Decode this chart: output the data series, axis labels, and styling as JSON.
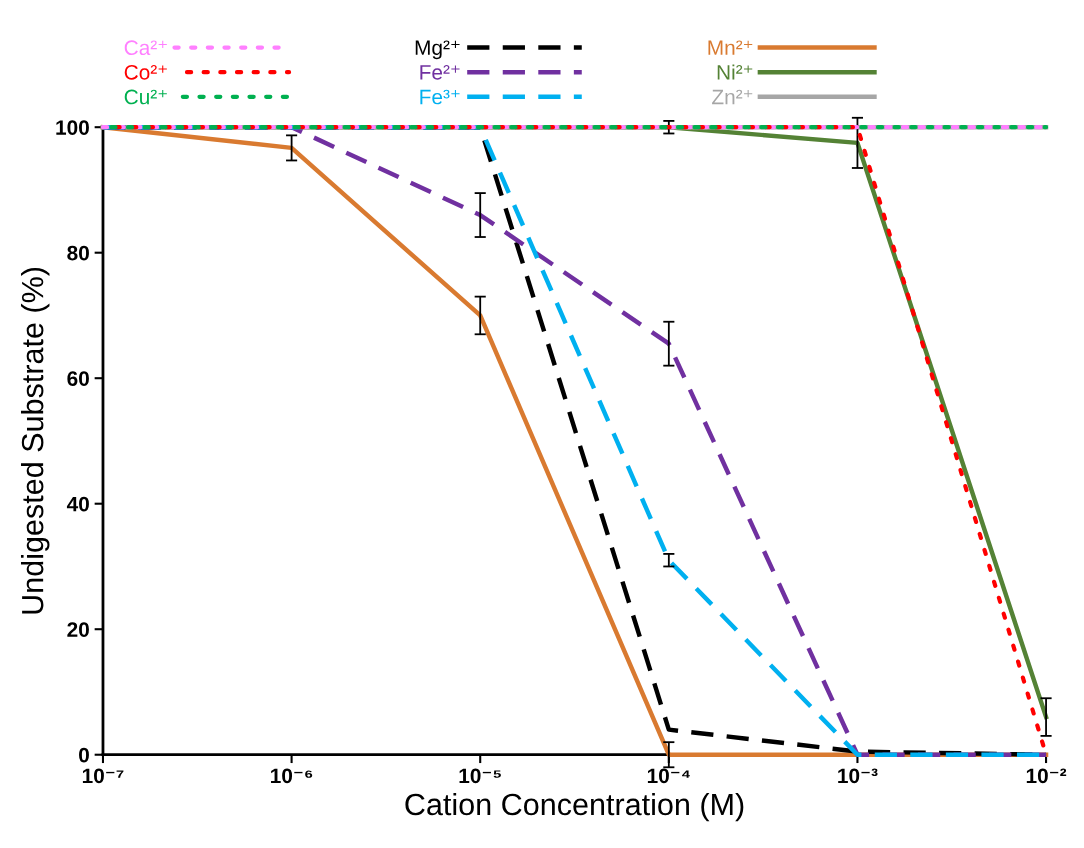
{
  "chart_data": {
    "type": "line",
    "xlabel": "Cation Concentration (M)",
    "ylabel": "Undigested Substrate (%)",
    "log": "x",
    "x": [
      1e-07,
      1e-06,
      1e-05,
      0.0001,
      0.001,
      0.01
    ],
    "xlim": [
      1e-07,
      0.01
    ],
    "xticks": [
      {
        "value": 1e-07,
        "label": "10⁻⁷"
      },
      {
        "value": 1e-06,
        "label": "10⁻⁶"
      },
      {
        "value": 1e-05,
        "label": "10⁻⁵"
      },
      {
        "value": 0.0001,
        "label": "10⁻⁴"
      },
      {
        "value": 0.001,
        "label": "10⁻³"
      },
      {
        "value": 0.01,
        "label": "10⁻²"
      }
    ],
    "ylim": [
      0,
      100
    ],
    "yticks": [
      0,
      20,
      40,
      60,
      80,
      100
    ],
    "grid": false,
    "legend": "top",
    "marker": "none",
    "series": [
      {
        "name": "Ca²⁺",
        "color": "#ff80ff",
        "line_style": "dotted",
        "values": [
          100,
          100,
          100,
          100,
          100,
          100
        ]
      },
      {
        "name": "Co²⁺",
        "color": "#ff0000",
        "line_style": "dotted",
        "values": [
          100,
          100,
          100,
          100,
          100,
          0
        ]
      },
      {
        "name": "Cu²⁺",
        "color": "#00b050",
        "line_style": "dotted",
        "values": [
          100,
          100,
          100,
          100,
          100,
          100
        ]
      },
      {
        "name": "Mg²⁺",
        "color": "#000000",
        "line_style": "dashed",
        "values": [
          100,
          100,
          100,
          4,
          0.5,
          0
        ]
      },
      {
        "name": "Fe²⁺",
        "color": "#7030a0",
        "line_style": "dashed",
        "values": [
          100,
          100,
          86,
          65.5,
          0,
          0
        ],
        "errors": [
          null,
          null,
          3.5,
          3.5,
          null,
          null
        ]
      },
      {
        "name": "Fe³⁺",
        "color": "#00b0f0",
        "line_style": "dashed",
        "values": [
          100,
          100,
          100,
          31,
          0,
          0
        ],
        "errors": [
          null,
          null,
          null,
          1,
          null,
          null
        ]
      },
      {
        "name": "Mn²⁺",
        "color": "#d97a30",
        "line_style": "solid",
        "values": [
          100,
          96.7,
          70,
          0,
          0,
          0
        ],
        "errors": [
          null,
          2,
          3,
          2,
          null,
          null
        ]
      },
      {
        "name": "Ni²⁺",
        "color": "#548235",
        "line_style": "solid",
        "values": [
          100,
          100,
          100,
          100,
          97.5,
          6
        ],
        "errors": [
          null,
          null,
          null,
          1,
          4,
          3
        ]
      },
      {
        "name": "Zn²⁺",
        "color": "#a6a6a6",
        "line_style": "solid",
        "values": [
          100,
          100,
          100,
          100,
          100,
          100
        ]
      }
    ]
  }
}
